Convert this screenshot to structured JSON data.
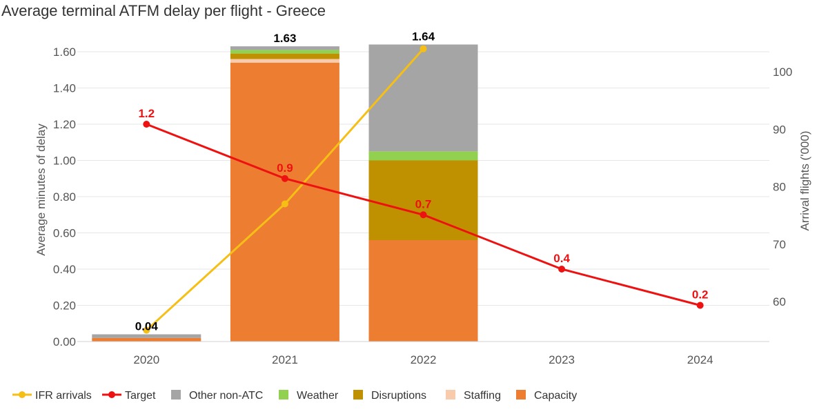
{
  "chart_data": {
    "type": "bar",
    "title": "Average terminal ATFM delay per flight - Greece",
    "ylabel": "Average minutes of delay",
    "y2label": "Arrival flights ('000)",
    "categories": [
      "2020",
      "2021",
      "2022",
      "2023",
      "2024"
    ],
    "ylim": [
      0,
      1.6
    ],
    "yticks": [
      "0.00",
      "0.20",
      "0.40",
      "0.60",
      "0.80",
      "1.00",
      "1.20",
      "1.40",
      "1.60"
    ],
    "y2lim": [
      60,
      100
    ],
    "y2ticks": [
      "60",
      "70",
      "80",
      "90",
      "100"
    ],
    "grid": true,
    "legend_position": "bottom",
    "stack_series": [
      {
        "name": "Capacity",
        "color": "#ED7D31",
        "values": [
          0.02,
          1.54,
          0.56,
          null,
          null
        ]
      },
      {
        "name": "Staffing",
        "color": "#F8CBAD",
        "values": [
          0.0,
          0.02,
          0.0,
          null,
          null
        ]
      },
      {
        "name": "Disruptions",
        "color": "#BF9000",
        "values": [
          0.0,
          0.03,
          0.44,
          null,
          null
        ]
      },
      {
        "name": "Weather",
        "color": "#92D050",
        "values": [
          0.0,
          0.02,
          0.05,
          null,
          null
        ]
      },
      {
        "name": "Other non-ATC",
        "color": "#A5A5A5",
        "values": [
          0.02,
          0.02,
          0.59,
          null,
          null
        ]
      }
    ],
    "totals": [
      {
        "category": "2020",
        "value": 0.04,
        "label": "0.04"
      },
      {
        "category": "2021",
        "value": 1.63,
        "label": "1.63"
      },
      {
        "category": "2022",
        "value": 1.64,
        "label": "1.64"
      }
    ],
    "target": {
      "name": "Target",
      "color": "#EE1111",
      "values": [
        1.2,
        0.9,
        0.7,
        0.4,
        0.2
      ],
      "labels": [
        "1.2",
        "0.9",
        "0.7",
        "0.4",
        "0.2"
      ]
    },
    "ifr_arrivals": {
      "name": "IFR arrivals",
      "color": "#F5BF16",
      "axis": "right",
      "values": [
        55,
        77,
        104,
        null,
        null
      ]
    },
    "legend": [
      "IFR arrivals",
      "Target",
      "Other non-ATC",
      "Weather",
      "Disruptions",
      "Staffing",
      "Capacity"
    ]
  }
}
